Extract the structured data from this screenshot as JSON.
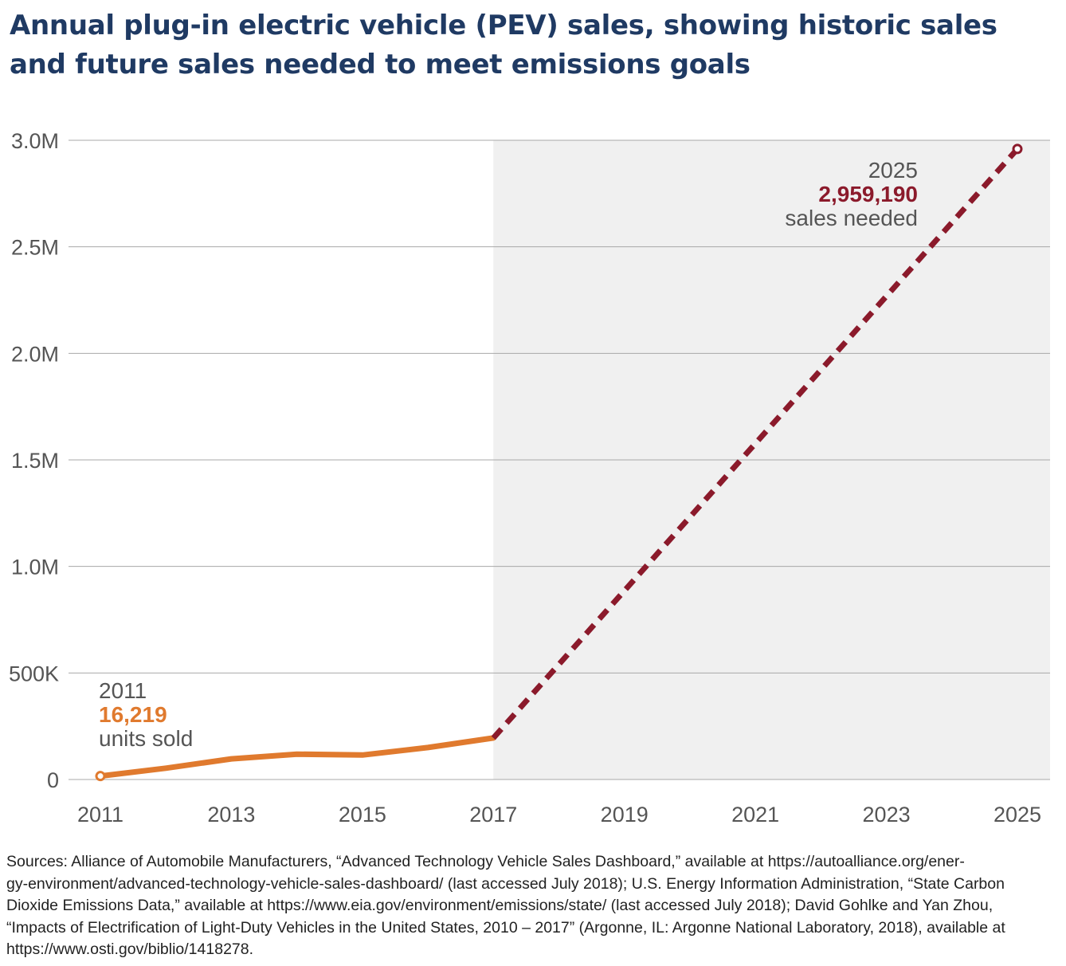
{
  "title_lines": [
    "Annual plug-in electric vehicle (PEV) sales, showing historic sales",
    "and future sales needed to meet emissions goals"
  ],
  "chart_data": {
    "type": "line",
    "ylim": [
      0,
      3000000
    ],
    "xlim": [
      2011,
      2025
    ],
    "ytick_values": [
      0,
      500000,
      1000000,
      1500000,
      2000000,
      2500000,
      3000000
    ],
    "ytick_labels": [
      "0",
      "500K",
      "1.0M",
      "1.5M",
      "2.0M",
      "2.5M",
      "3.0M"
    ],
    "xtick_values": [
      2011,
      2013,
      2015,
      2017,
      2019,
      2021,
      2023,
      2025
    ],
    "xtick_labels": [
      "2011",
      "2013",
      "2015",
      "2017",
      "2019",
      "2021",
      "2023",
      "2025"
    ],
    "grid": true,
    "shaded_region": {
      "from": 2017,
      "to": 2025,
      "color": "#f0f0f0"
    },
    "series": [
      {
        "style": "solid",
        "color": "#e07a2e",
        "x": [
          2011,
          2012,
          2013,
          2014,
          2015,
          2016,
          2017
        ],
        "y": [
          16219,
          53000,
          97000,
          119000,
          115000,
          150000,
          195000
        ]
      },
      {
        "style": "dashed",
        "color": "#8b1a2b",
        "x": [
          2017,
          2025
        ],
        "y": [
          195000,
          2959190
        ]
      }
    ],
    "annotations": [
      {
        "year": "2011",
        "value": "16,219",
        "note": "units sold",
        "color": "#e07a2e"
      },
      {
        "year": "2025",
        "value": "2,959,190",
        "note": "sales needed",
        "color": "#8b1a2b"
      }
    ]
  },
  "sources_lines": [
    "Sources: Alliance of Automobile Manufacturers, “Advanced Technology Vehicle Sales Dashboard,” available at https://autoalliance.org/ener-",
    "gy-environment/advanced-technology-vehicle-sales-dashboard/ (last accessed July 2018); U.S. Energy Information Administration, “State Carbon",
    "Dioxide Emissions Data,” available at https://www.eia.gov/environment/emissions/state/ (last accessed July 2018); David Gohlke and Yan Zhou,",
    "“Impacts of Electrification of Light-Duty Vehicles in the United States, 2010 – 2017” (Argonne, IL: Argonne National Laboratory, 2018), available at",
    "https://www.osti.gov/biblio/1418278."
  ]
}
